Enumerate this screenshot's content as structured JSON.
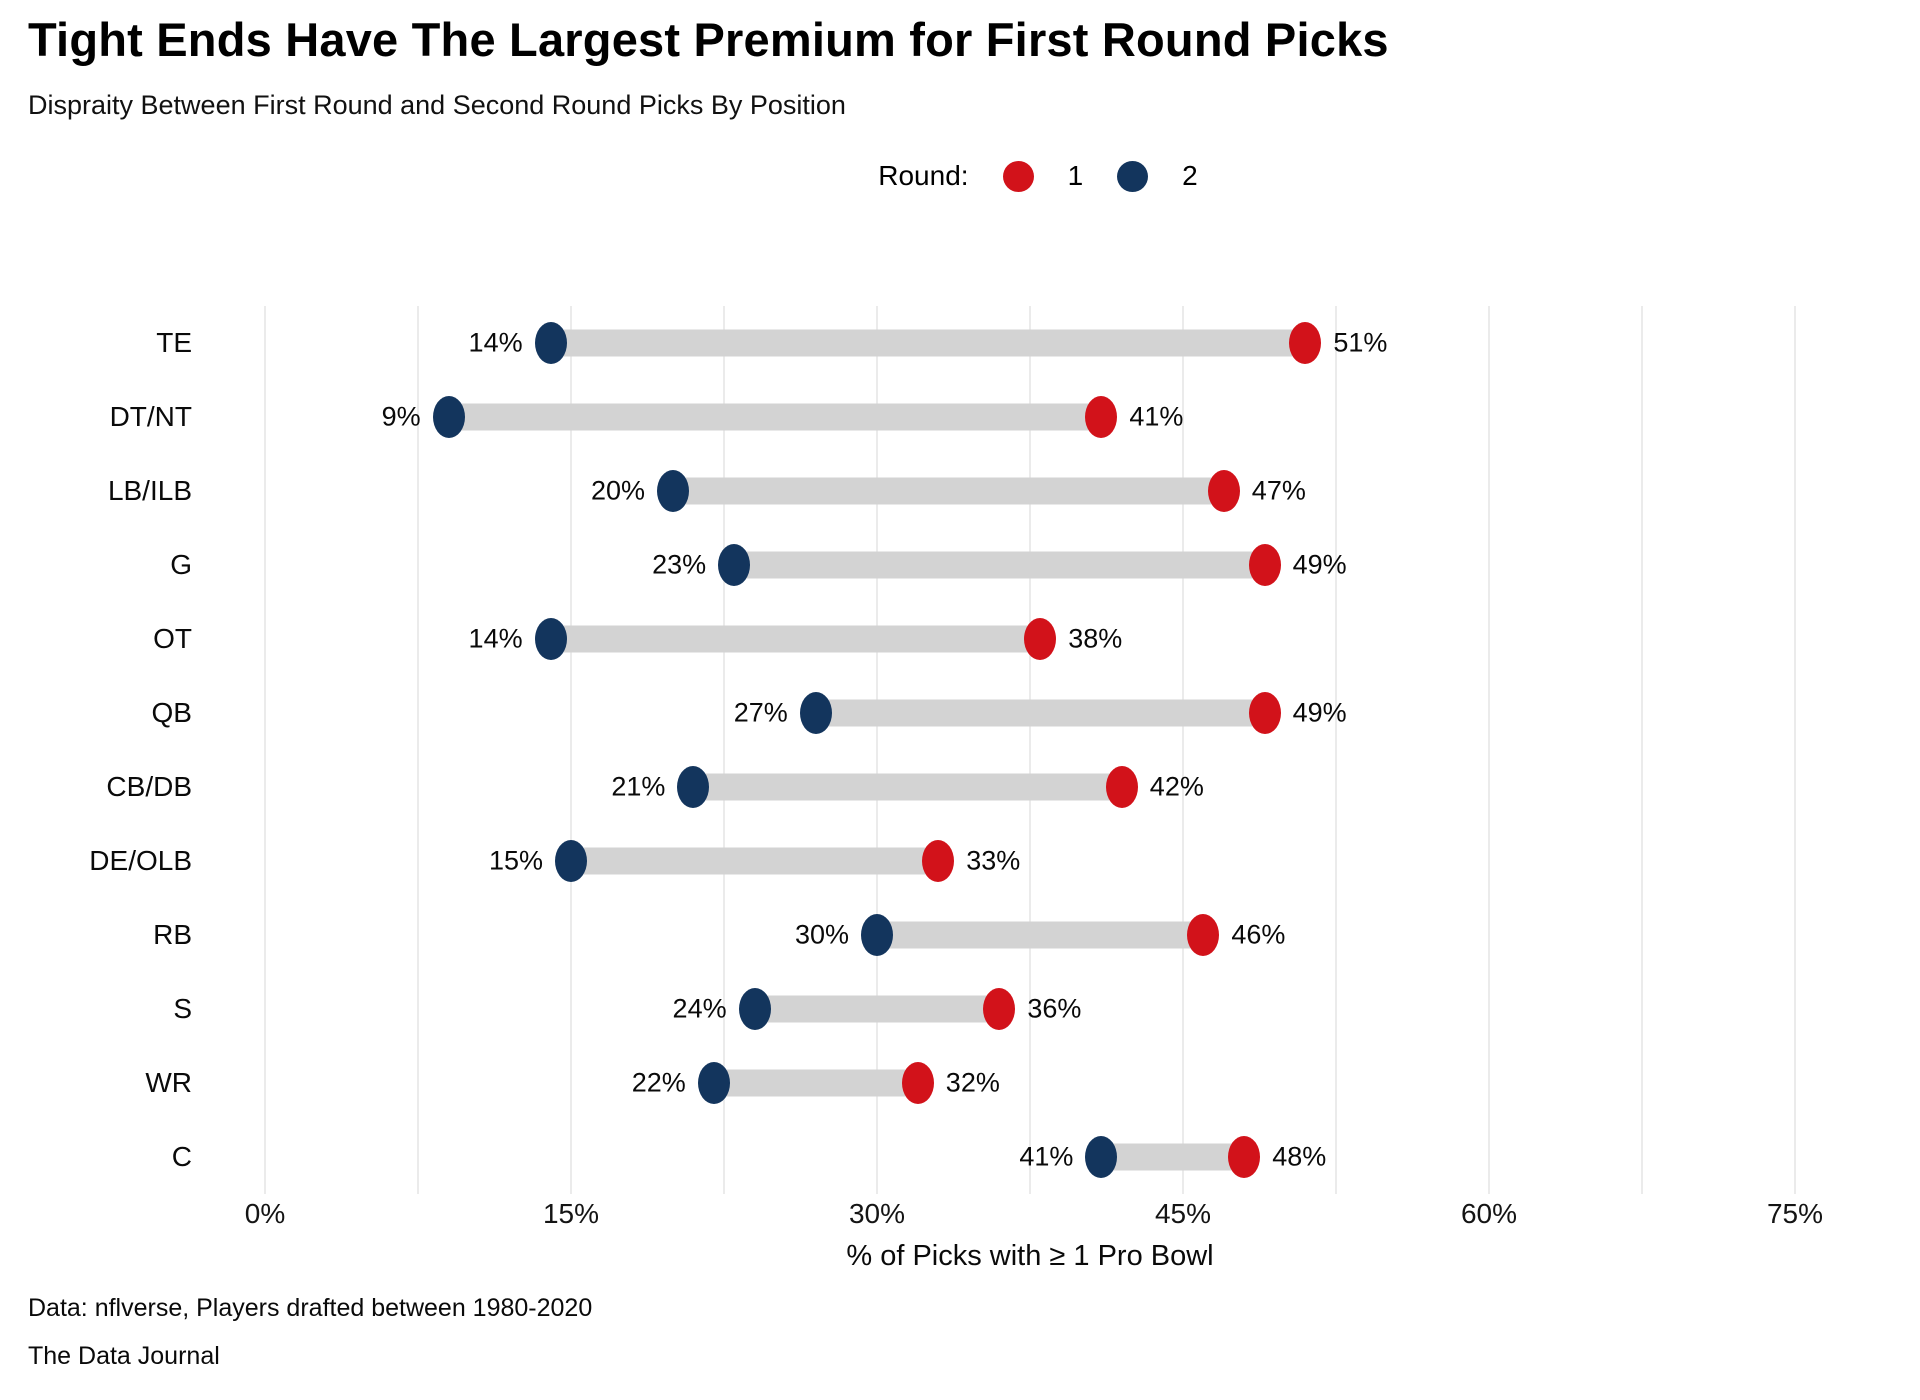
{
  "page": {
    "title": "Tight Ends Have The Largest Premium for First Round Picks",
    "subtitle": "Dispraity Between First Round and Second Round Picks By Position",
    "footer_source": "Data: nflverse, Players drafted between 1980-2020",
    "footer_brand": "The Data Journal"
  },
  "legend": {
    "label": "Round:",
    "items": [
      {
        "label": "1",
        "color": "#d2121a"
      },
      {
        "label": "2",
        "color": "#13355d"
      }
    ]
  },
  "chart_data": {
    "type": "scatter",
    "variant": "dumbbell",
    "orientation": "horizontal",
    "title": "Tight Ends Have The Largest Premium for First Round Picks",
    "subtitle": "Dispraity Between First Round and Second Round Picks By Position",
    "categories": [
      "TE",
      "DT/NT",
      "LB/ILB",
      "G",
      "OT",
      "QB",
      "CB/DB",
      "DE/OLB",
      "RB",
      "S",
      "WR",
      "C"
    ],
    "series": [
      {
        "name": "1",
        "round": "Round 1",
        "color": "#d2121a",
        "values": [
          51,
          41,
          47,
          49,
          38,
          49,
          42,
          33,
          46,
          36,
          32,
          48
        ]
      },
      {
        "name": "2",
        "round": "Round 2",
        "color": "#13355d",
        "values": [
          14,
          9,
          20,
          23,
          14,
          27,
          21,
          15,
          30,
          24,
          22,
          41
        ]
      }
    ],
    "value_suffix": "%",
    "xlabel": "% of Picks with ≥ 1 Pro Bowl",
    "ylabel": "",
    "xlim": [
      0,
      75
    ],
    "xticks": [
      0,
      15,
      30,
      45,
      60,
      75
    ],
    "xtick_labels": [
      "0%",
      "15%",
      "30%",
      "45%",
      "60%",
      "75%"
    ],
    "minor_gridline_step": 7.5,
    "grid": true,
    "legend_position": "top-center",
    "connector_color": "#d3d3d3",
    "gridline_color": "#ebebeb"
  }
}
